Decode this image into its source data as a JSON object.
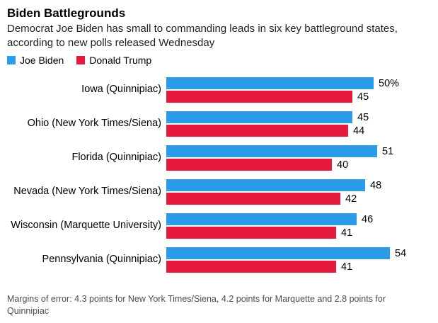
{
  "header": {
    "title": "Biden Battlegrounds",
    "subtitle": "Democrat Joe Biden has small to commanding leads in six key battleground states, according to new polls released Wednesday"
  },
  "legend": [
    {
      "label": "Joe Biden",
      "color": "#2b9de8"
    },
    {
      "label": "Donald Trump",
      "color": "#e51a3c"
    }
  ],
  "chart_data": {
    "type": "bar",
    "orientation": "horizontal",
    "title": "Biden Battlegrounds",
    "xlabel": "",
    "ylabel": "",
    "xlim": [
      0,
      58
    ],
    "grid": false,
    "legend_position": "top-left",
    "categories": [
      "Iowa (Quinnipiac)",
      "Ohio (New York Times/Siena)",
      "Florida (Quinnipiac)",
      "Nevada (New York Times/Siena)",
      "Wisconsin (Marquette University)",
      "Pennsylvania (Quinnipiac)"
    ],
    "series": [
      {
        "name": "Joe Biden",
        "color": "#2b9de8",
        "values": [
          50,
          45,
          51,
          48,
          46,
          54
        ],
        "value_labels": [
          "50%",
          "45",
          "51",
          "48",
          "46",
          "54"
        ]
      },
      {
        "name": "Donald Trump",
        "color": "#e51a3c",
        "values": [
          45,
          44,
          40,
          42,
          41,
          41
        ],
        "value_labels": [
          "45",
          "44",
          "40",
          "42",
          "41",
          "41"
        ]
      }
    ]
  },
  "footer": {
    "note": "Margins of error: 4.3 points for New York Times/Siena, 4.2 points for Marquette and 2.8 points for Quinnipiac"
  }
}
